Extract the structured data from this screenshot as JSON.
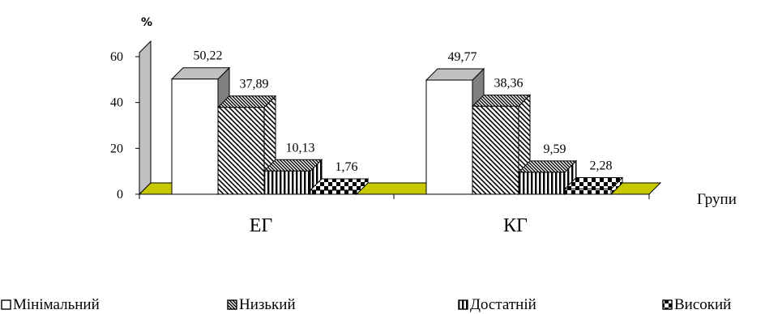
{
  "chart_data": {
    "type": "bar",
    "ylabel": "%",
    "xlabel": "Групи",
    "ylim": [
      0,
      60
    ],
    "yticks": [
      0,
      20,
      40,
      60
    ],
    "categories": [
      "ЕГ",
      "КГ"
    ],
    "series": [
      {
        "name": "Мінімальний",
        "values": [
          50.22,
          49.77
        ],
        "labels": [
          "50,22",
          "49,77"
        ]
      },
      {
        "name": "Низький",
        "values": [
          37.89,
          38.36
        ],
        "labels": [
          "37,89",
          "38,36"
        ]
      },
      {
        "name": "Достатній",
        "values": [
          10.13,
          9.59
        ],
        "labels": [
          "10,13",
          "9,59"
        ]
      },
      {
        "name": "Високий",
        "values": [
          1.76,
          2.28
        ],
        "labels": [
          "1,76",
          "2,28"
        ]
      }
    ],
    "legend_position": "bottom",
    "grid": false,
    "colors": {
      "back_wall": "#c0c0c0",
      "floor": "#c8c800",
      "bar_face": "#ffffff",
      "bar_top": "#c0c0c0",
      "bar_side": "#808080",
      "stroke": "#000000"
    }
  }
}
